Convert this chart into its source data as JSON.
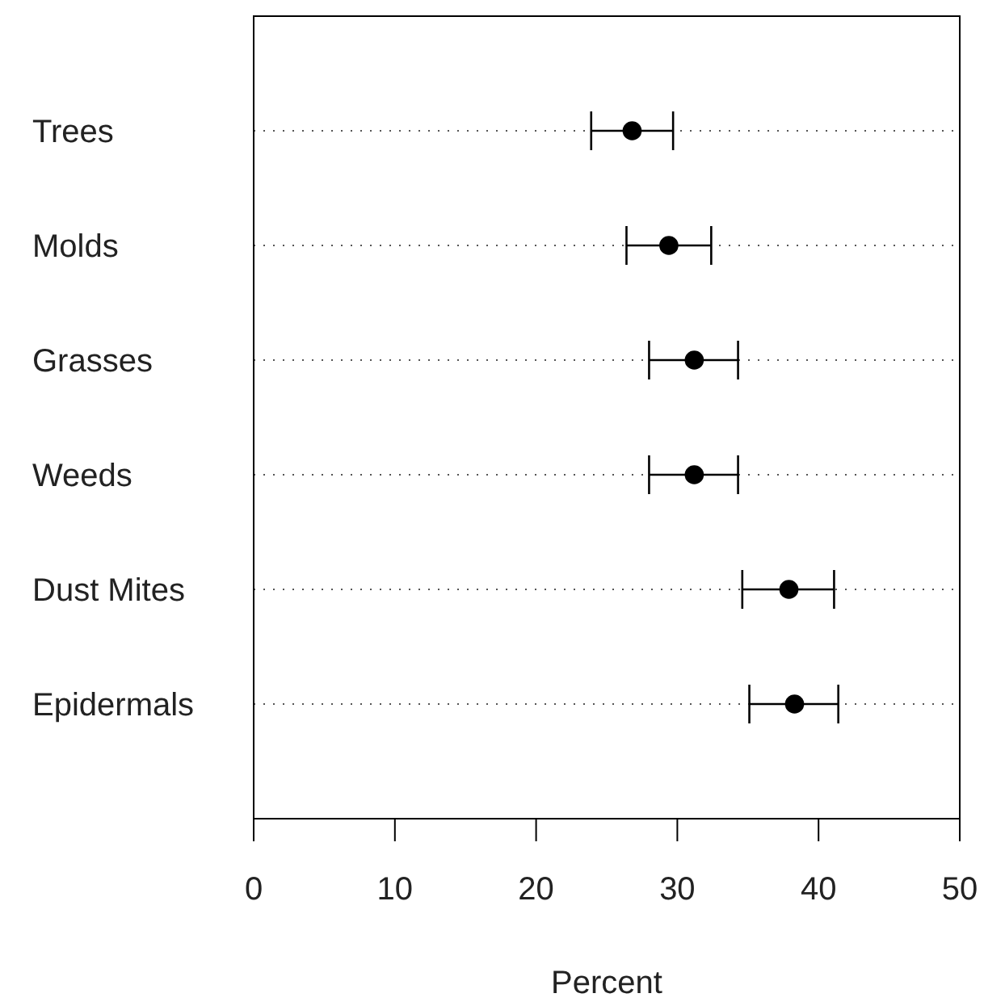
{
  "chart_data": {
    "type": "scatter",
    "orientation": "horizontal",
    "xlabel": "Percent",
    "categories": [
      "Trees",
      "Molds",
      "Grasses",
      "Weeds",
      "Dust Mites",
      "Epidermals"
    ],
    "values": [
      26.8,
      29.4,
      31.2,
      31.2,
      37.9,
      38.3
    ],
    "errors": [
      [
        23.9,
        29.7
      ],
      [
        26.4,
        32.4
      ],
      [
        28.0,
        34.3
      ],
      [
        28.0,
        34.3
      ],
      [
        34.6,
        41.1
      ],
      [
        35.1,
        41.4
      ]
    ],
    "color": "#000000",
    "marker": "circle",
    "grid": "y",
    "xlim": [
      0,
      50
    ],
    "xticks": [
      0,
      10,
      20,
      30,
      40,
      50
    ]
  }
}
